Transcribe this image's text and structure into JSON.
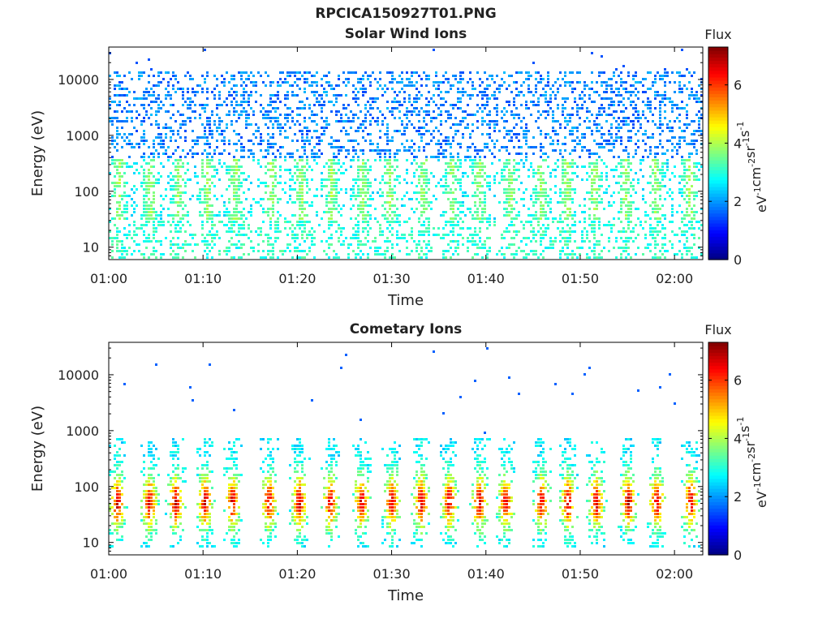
{
  "figure": {
    "file_title": "RPCICA150927T01.PNG"
  },
  "chart_data": [
    {
      "type": "heatmap",
      "title": "Solar Wind Ions",
      "xlabel": "Time",
      "ylabel": "Energy (eV)",
      "x_ticks": [
        "01:00",
        "01:10",
        "01:20",
        "01:30",
        "01:40",
        "01:50",
        "02:00"
      ],
      "x_range": [
        "01:00",
        "02:03"
      ],
      "y_scale": "log",
      "y_ticks": [
        "10",
        "100",
        "1000",
        "10000"
      ],
      "y_range": [
        6,
        38000
      ],
      "colorbar": {
        "label": "Flux",
        "unit": "eV-1cm-2sr-1s-1",
        "range": [
          0,
          7.3
        ],
        "ticks": [
          "0",
          "2",
          "4",
          "6"
        ],
        "colormap": "jet"
      },
      "description_of_content": "sparse low flux (about 1.5-3) scattered from ~6 eV to ~20000 eV, with slightly higher flux (about 3-4) bursts around 40-300 eV recurring every ~3 minutes",
      "bursts_minutes": [
        1,
        4.3,
        7.3,
        10.3,
        13.3,
        17.1,
        20.3,
        23.5,
        26.8,
        29.7,
        33.2,
        36.3,
        39.2,
        42.5,
        45.7,
        48.5,
        51.4,
        54.7,
        57.9,
        61.5
      ],
      "colors": {
        "frame": "#000000",
        "background": "#ffffff"
      }
    },
    {
      "type": "heatmap",
      "title": "Cometary Ions",
      "xlabel": "Time",
      "ylabel": "Energy (eV)",
      "x_ticks": [
        "01:00",
        "01:10",
        "01:20",
        "01:30",
        "01:40",
        "01:50",
        "02:00"
      ],
      "x_range": [
        "01:00",
        "02:03"
      ],
      "y_scale": "log",
      "y_ticks": [
        "10",
        "100",
        "1000",
        "10000"
      ],
      "y_range": [
        6,
        38000
      ],
      "colorbar": {
        "label": "Flux",
        "unit": "eV-1cm-2sr-1s-1",
        "range": [
          0,
          7.3
        ],
        "ticks": [
          "0",
          "2",
          "4",
          "6"
        ],
        "colormap": "jet"
      },
      "description_of_content": "periodic plumes of high flux (peak about 5.5-6.5) between ~15 and ~600 eV, centered near 40-80 eV, recurring every ~3 minutes; isolated low-flux pixels up to ~30000 eV",
      "bursts_minutes": [
        0.8,
        4.2,
        7.0,
        10.1,
        13.0,
        16.9,
        20.1,
        23.4,
        26.7,
        29.9,
        33.0,
        36.0,
        39.2,
        42.0,
        45.8,
        48.6,
        51.6,
        55.0,
        58.0,
        61.6
      ],
      "colors": {
        "frame": "#000000",
        "background": "#ffffff"
      }
    }
  ]
}
